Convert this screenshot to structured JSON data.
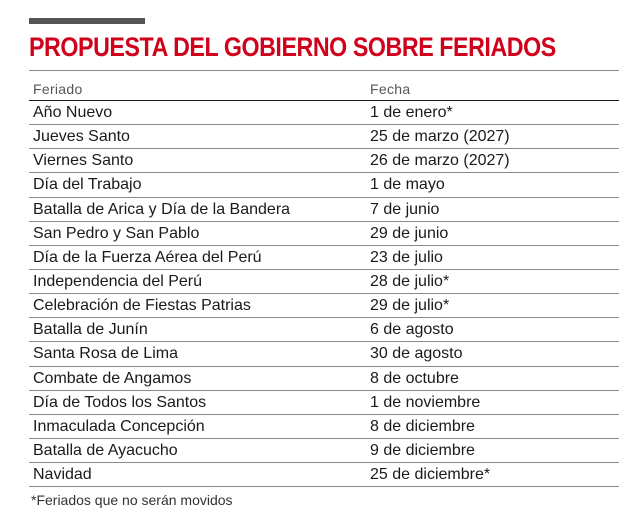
{
  "title": "PROPUESTA DEL GOBIERNO SOBRE FERIADOS",
  "table": {
    "headers": {
      "name": "Feriado",
      "date": "Fecha"
    },
    "rows": [
      {
        "name": "Año Nuevo",
        "date": "1 de enero*"
      },
      {
        "name": "Jueves Santo",
        "date": "25 de marzo (2027)"
      },
      {
        "name": "Viernes Santo",
        "date": "26 de marzo (2027)"
      },
      {
        "name": "Día del Trabajo",
        "date": "1 de mayo"
      },
      {
        "name": "Batalla de Arica y Día de la Bandera",
        "date": "7 de junio"
      },
      {
        "name": "San Pedro y San Pablo",
        "date": "29 de junio"
      },
      {
        "name": "Día de la Fuerza Aérea del Perú",
        "date": "23 de julio"
      },
      {
        "name": "Independencia del Perú",
        "date": "28 de julio*"
      },
      {
        "name": "Celebración de Fiestas Patrias",
        "date": "29 de julio*"
      },
      {
        "name": "Batalla de Junín",
        "date": "6 de agosto"
      },
      {
        "name": "Santa Rosa de Lima",
        "date": "30 de agosto"
      },
      {
        "name": "Combate de Angamos",
        "date": "8 de octubre"
      },
      {
        "name": "Día de Todos los Santos",
        "date": "1 de noviembre"
      },
      {
        "name": "Inmaculada Concepción",
        "date": "8 de diciembre"
      },
      {
        "name": "Batalla de Ayacucho",
        "date": "9 de diciembre"
      },
      {
        "name": "Navidad",
        "date": "25 de diciembre*"
      }
    ]
  },
  "footnote": "*Feriados que no serán movidos",
  "colors": {
    "title": "#d0021b",
    "rule": "#555555"
  }
}
